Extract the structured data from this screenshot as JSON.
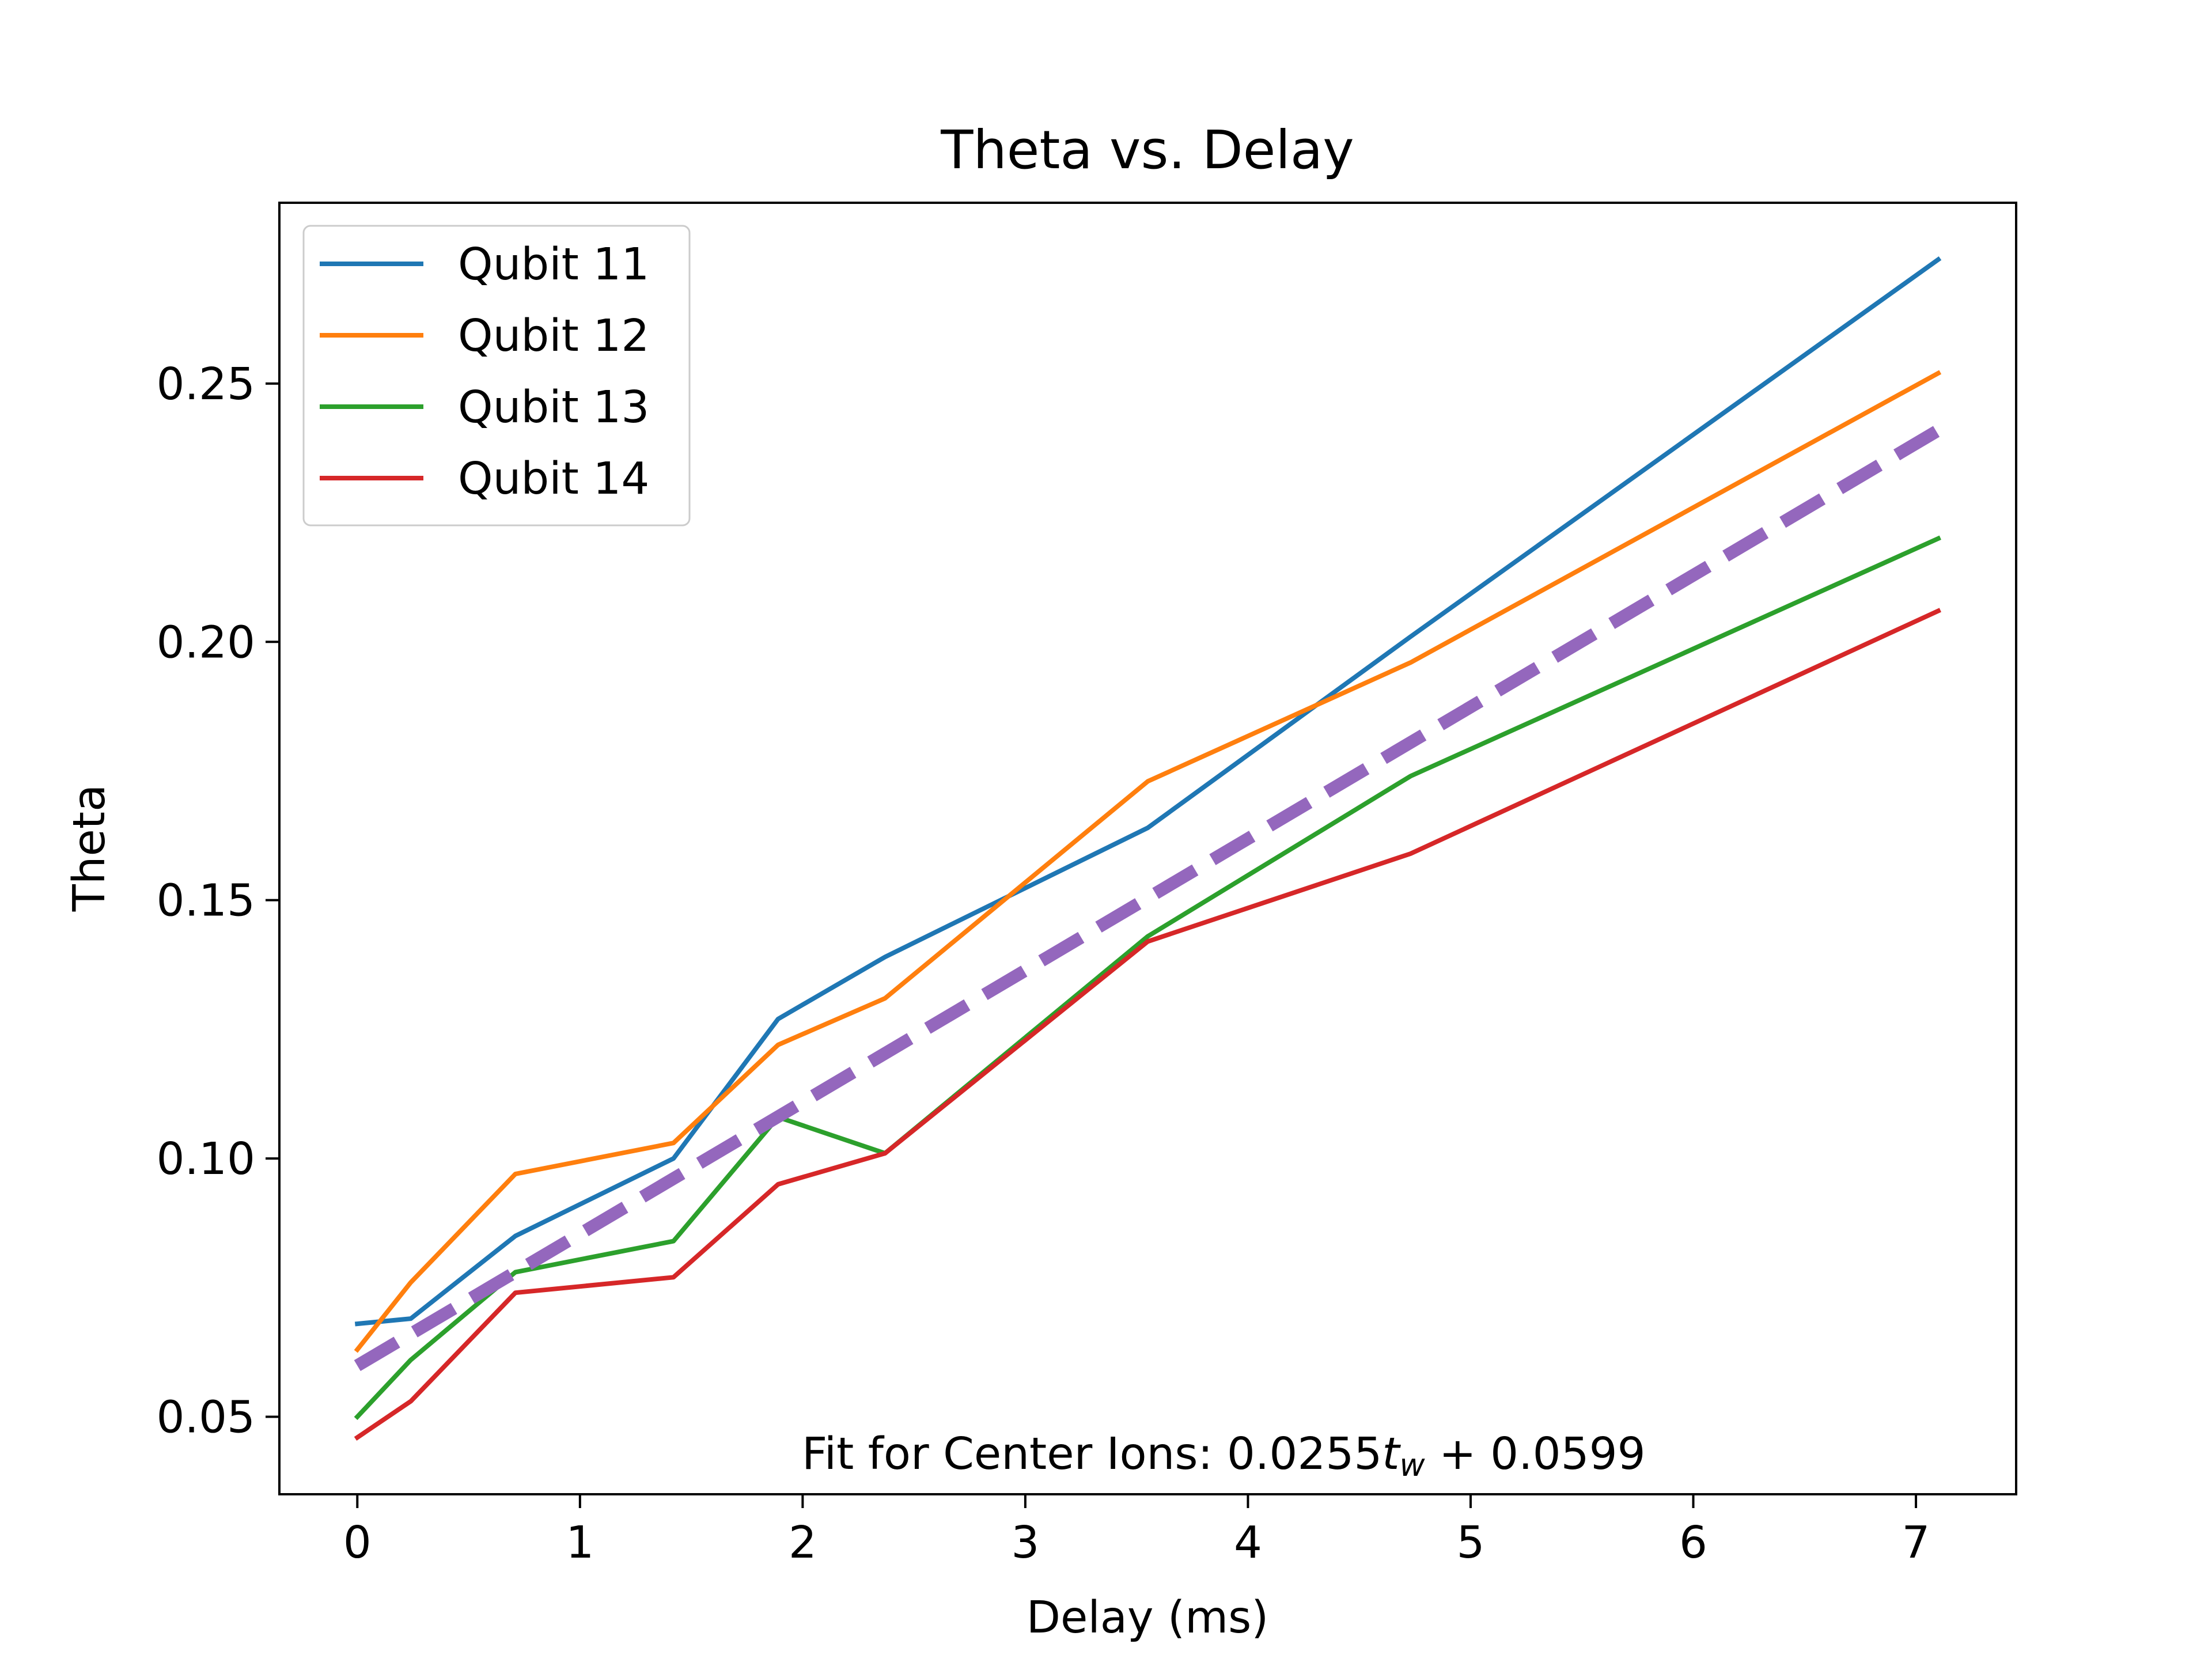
{
  "chart_data": {
    "type": "line",
    "title": "Theta vs. Delay",
    "xlabel": "Delay (ms)",
    "ylabel": "Theta",
    "xlim": [
      -0.35,
      7.45
    ],
    "ylim": [
      0.035,
      0.285
    ],
    "xticks": [
      0,
      1,
      2,
      3,
      4,
      5,
      6,
      7
    ],
    "yticks": [
      0.05,
      0.1,
      0.15,
      0.2,
      0.25
    ],
    "ytick_labels": [
      "0.05",
      "0.10",
      "0.15",
      "0.20",
      "0.25"
    ],
    "grid": false,
    "legend_placement": "upper-left",
    "x": [
      0,
      0.24,
      0.71,
      1.42,
      1.89,
      2.37,
      3.55,
      4.73,
      7.1
    ],
    "series": [
      {
        "name": "Qubit 11",
        "color": "#1f77b4",
        "values": [
          0.068,
          0.069,
          0.085,
          0.1,
          0.127,
          0.139,
          0.164,
          0.201,
          0.274
        ]
      },
      {
        "name": "Qubit 12",
        "color": "#ff7f0e",
        "values": [
          0.063,
          0.076,
          0.097,
          0.103,
          0.122,
          0.131,
          0.173,
          0.196,
          0.252
        ]
      },
      {
        "name": "Qubit 13",
        "color": "#2ca02c",
        "values": [
          0.05,
          0.061,
          0.078,
          0.084,
          0.108,
          0.101,
          0.143,
          0.174,
          0.22
        ]
      },
      {
        "name": "Qubit 14",
        "color": "#d62728",
        "values": [
          0.046,
          0.053,
          0.074,
          0.077,
          0.095,
          0.101,
          0.142,
          0.159,
          0.206
        ]
      }
    ],
    "fit": {
      "color": "#9467bd",
      "slope": 0.0255,
      "intercept": 0.0599,
      "x_range": [
        0,
        7.1
      ],
      "style": "dashed"
    },
    "annotation": {
      "prefix": "Fit for Center Ions: 0.0255",
      "var": "t",
      "sub": "w",
      "suffix": " + 0.0599"
    }
  }
}
